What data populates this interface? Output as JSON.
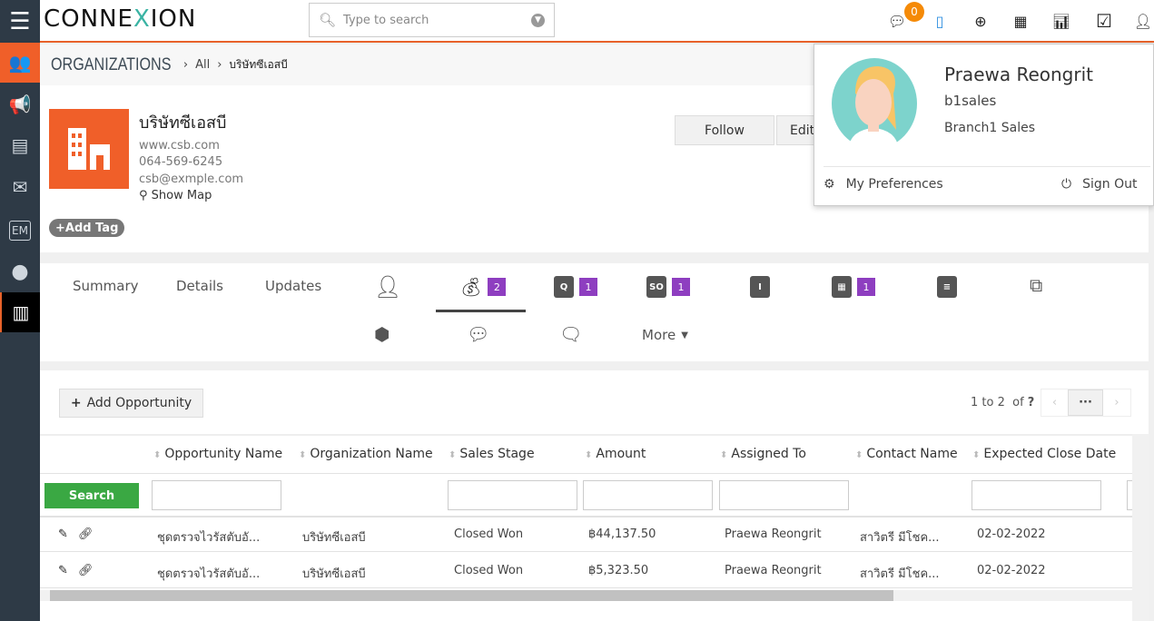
{
  "app": {
    "logo_text": "CONNEXION",
    "accent": "#e8622a"
  },
  "search": {
    "placeholder": "Type to search"
  },
  "topbar": {
    "chat_count": "0",
    "icons": [
      "chat-icon",
      "mobile-icon",
      "plus-circle-icon",
      "calendar-icon",
      "bar-chart-icon",
      "checkbox-icon",
      "user-icon"
    ]
  },
  "sidebar": {
    "items": [
      "organizations-icon",
      "megaphone-icon",
      "contact-card-icon",
      "mail-clock-icon",
      "em-icon",
      "person-icon",
      "building-icon"
    ],
    "em_label": "EM"
  },
  "breadcrumb": {
    "root": "ORGANIZATIONS",
    "all": "All",
    "current": "บริษัทซีเอสบี"
  },
  "org": {
    "name": "บริษัทซีเอสบี",
    "website": "www.csb.com",
    "phone": "064-569-6245",
    "email": "csb@exmple.com",
    "show_map": "Show Map",
    "add_tag": "Add Tag",
    "follow": "Follow",
    "edit": "Edit"
  },
  "tabs": {
    "summary": "Summary",
    "details": "Details",
    "updates": "Updates",
    "opportunities_count": "2",
    "quotes_count": "1",
    "sales_orders_count": "1",
    "events_count": "1",
    "more": "More"
  },
  "list": {
    "add_button": "Add Opportunity",
    "pagination": "1 to 2",
    "of_label": "of",
    "total": "?",
    "search_button": "Search",
    "columns": [
      "Opportunity Name",
      "Organization Name",
      "Sales Stage",
      "Amount",
      "Assigned To",
      "Contact Name",
      "Expected Close Date"
    ],
    "rows": [
      [
        "ชุดตรวจไวรัสตับอั...",
        "บริษัทซีเอสบี",
        "Closed Won",
        "฿44,137.50",
        "Praewa Reongrit",
        "สาวิตรี มีโชค...",
        "02-02-2022"
      ],
      [
        "ชุดตรวจไวรัสตับอั...",
        "บริษัทซีเอสบี",
        "Closed Won",
        "฿5,323.50",
        "Praewa Reongrit",
        "สาวิตรี มีโชค...",
        "02-02-2022"
      ]
    ]
  },
  "profile": {
    "name": "Praewa Reongrit",
    "username": "b1sales",
    "role": "Branch1 Sales",
    "preferences": "My Preferences",
    "sign_out": "Sign Out"
  }
}
